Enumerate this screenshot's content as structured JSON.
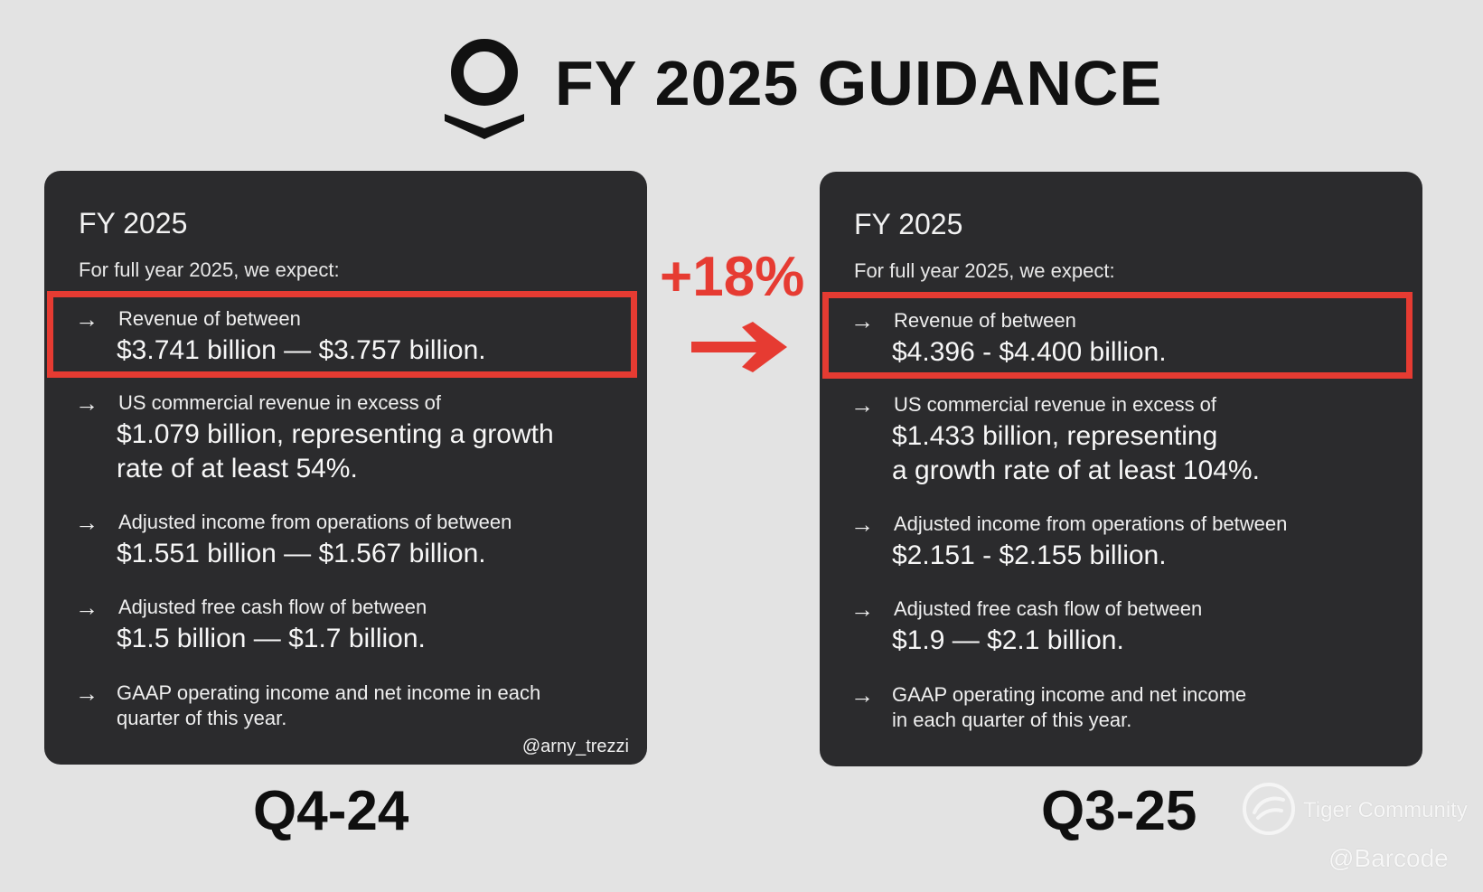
{
  "page": {
    "title": "FY 2025 GUIDANCE"
  },
  "icons": {
    "logo": "palantir-logo-icon",
    "item_arrow": "arrow-right-icon",
    "comparison_arrow": "big-red-arrow-icon",
    "tiger": "tiger-community-logo-icon"
  },
  "colors": {
    "background": "#e3e3e3",
    "panel": "#2b2b2d",
    "accent": "#e63b32",
    "text_light": "#f1f1f1",
    "text_dark": "#111111"
  },
  "comparison": {
    "change": "+18%"
  },
  "panels": {
    "left": {
      "heading": "FY 2025",
      "intro": "For full year 2025, we expect:",
      "items": [
        {
          "arrow": "→",
          "lead": "Revenue of between",
          "value": "$3.741 billion — $3.757 billion."
        },
        {
          "arrow": "→",
          "lead": "US commercial revenue in excess of",
          "value_line1": "$1.079 billion, representing a growth",
          "value_line2": "rate of at least 54%."
        },
        {
          "arrow": "→",
          "lead": "Adjusted income from operations of between",
          "value": "$1.551 billion — $1.567 billion."
        },
        {
          "arrow": "→",
          "lead": "Adjusted free cash flow of between",
          "value": "$1.5 billion — $1.7 billion."
        },
        {
          "arrow": "→",
          "line1": "GAAP operating income and net income in each",
          "line2": "quarter of this year."
        }
      ],
      "watermark": "@arny_trezzi",
      "quarter": "Q4-24"
    },
    "right": {
      "heading": "FY 2025",
      "intro": "For full year 2025, we expect:",
      "items": [
        {
          "arrow": "→",
          "lead": "Revenue of between",
          "value": "$4.396 - $4.400 billion."
        },
        {
          "arrow": "→",
          "lead": "US commercial revenue in excess of",
          "value_line1": "$1.433 billion, representing",
          "value_line2": "a growth rate of at least 104%."
        },
        {
          "arrow": "→",
          "lead": "Adjusted income from operations of between",
          "value": "$2.151 - $2.155 billion."
        },
        {
          "arrow": "→",
          "lead": "Adjusted free cash flow of between",
          "value": "$1.9 — $2.1 billion."
        },
        {
          "arrow": "→",
          "line1": "GAAP operating income and net income",
          "line2": "in each quarter of this year."
        }
      ],
      "quarter": "Q3-25"
    }
  },
  "watermarks": {
    "tiger_community": "Tiger Community",
    "barcode": "@Barcode"
  }
}
